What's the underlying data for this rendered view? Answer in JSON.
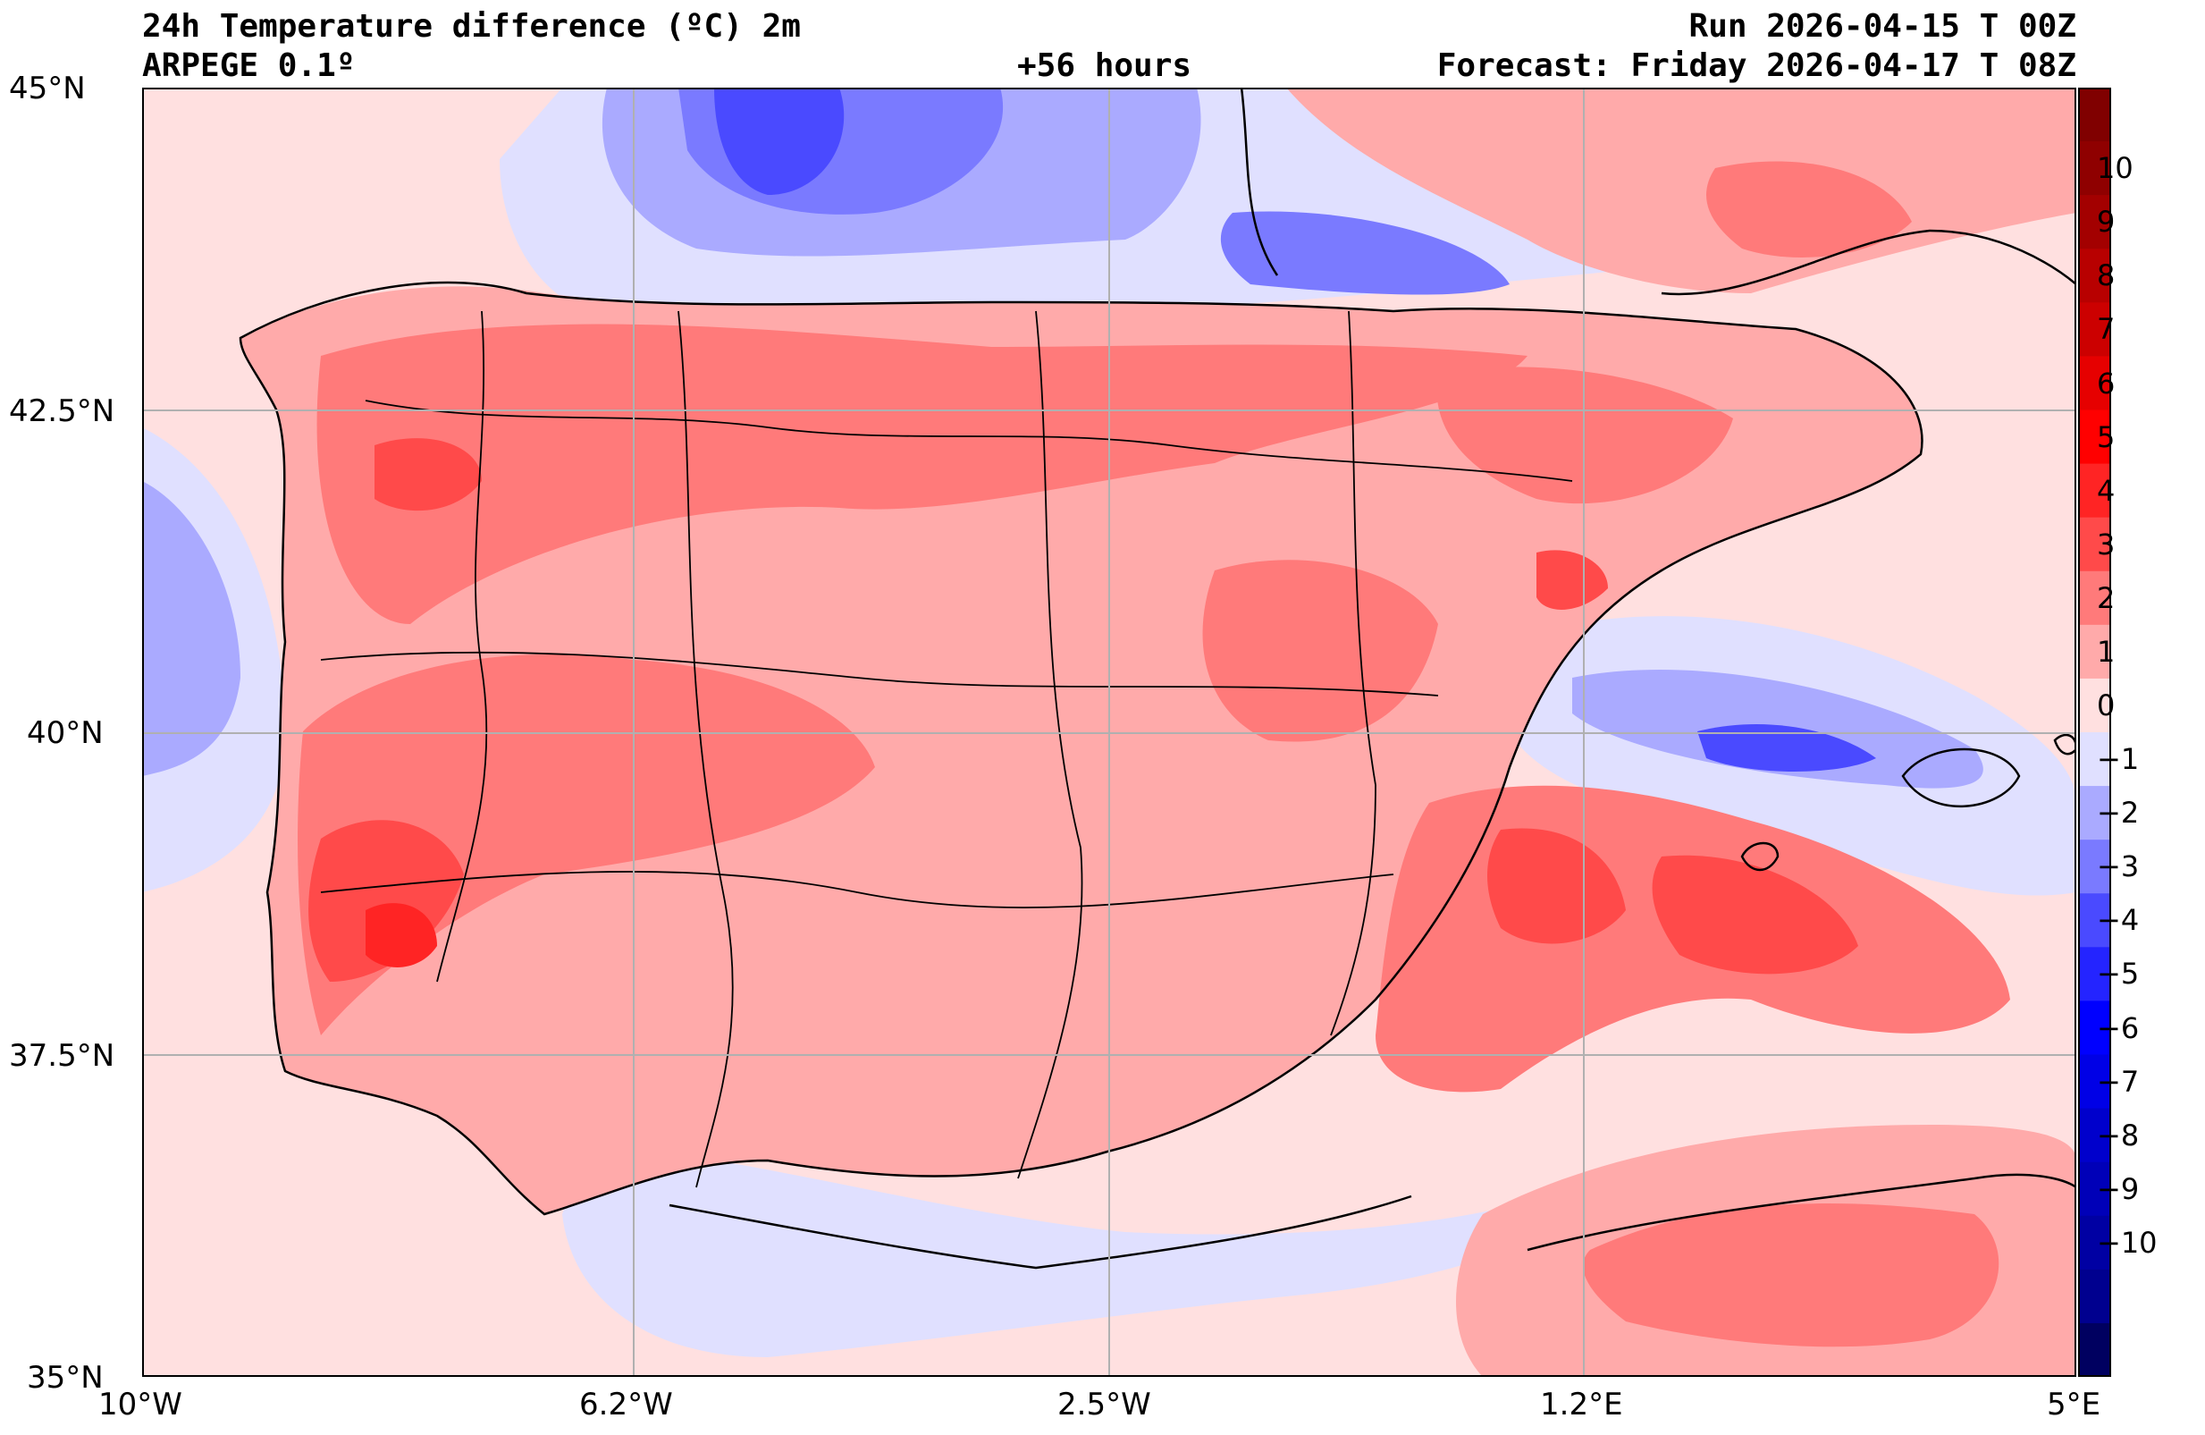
{
  "header": {
    "title_line1": "24h Temperature difference (ºC) 2m",
    "model": "ARPEGE 0.1º",
    "lead_time": "+56 hours",
    "run": "Run 2026-04-15 T 00Z",
    "forecast": "Forecast: Friday 2026-04-17 T 08Z"
  },
  "axes": {
    "lat_labels": [
      "45°N",
      "42.5°N",
      "40°N",
      "37.5°N",
      "35°N"
    ],
    "lon_labels": [
      "10°W",
      "6.2°W",
      "2.5°W",
      "1.2°E",
      "5°E"
    ]
  },
  "colorbar": {
    "labels": [
      "10",
      "9",
      "8",
      "7",
      "6",
      "5",
      "4",
      "3",
      "2",
      "1",
      "0",
      "−1",
      "−2",
      "−3",
      "−4",
      "−5",
      "−6",
      "−7",
      "−8",
      "−9",
      "−10"
    ],
    "colors_top_to_bottom": [
      "#800000",
      "#8f0000",
      "#a30000",
      "#b80000",
      "#cc0000",
      "#e60000",
      "#ff0000",
      "#ff2424",
      "#ff4a4a",
      "#ff7a7a",
      "#ffaaaa",
      "#ffe0e0",
      "#e0e0ff",
      "#aaaaff",
      "#7a7aff",
      "#4a4aff",
      "#2424ff",
      "#0000ff",
      "#0000e6",
      "#0000cc",
      "#0000b8",
      "#0000a3",
      "#00008f",
      "#000060"
    ]
  }
}
